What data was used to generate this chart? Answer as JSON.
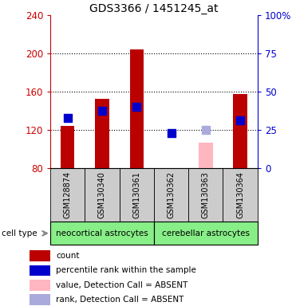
{
  "title": "GDS3366 / 1451245_at",
  "samples": [
    "GSM128874",
    "GSM130340",
    "GSM130361",
    "GSM130362",
    "GSM130363",
    "GSM130364"
  ],
  "count_values": [
    124,
    153,
    204,
    80,
    null,
    158
  ],
  "percentile_present": [
    133,
    140,
    144,
    117,
    null,
    130
  ],
  "percentile_absent_rank": [
    null,
    null,
    null,
    null,
    120,
    null
  ],
  "value_absent": [
    null,
    null,
    null,
    null,
    107,
    null
  ],
  "ylim_left": [
    80,
    240
  ],
  "ylim_right": [
    0,
    100
  ],
  "left_ticks": [
    80,
    120,
    160,
    200,
    240
  ],
  "right_ticks": [
    0,
    25,
    50,
    75,
    100
  ],
  "left_color": "#cc0000",
  "right_color": "#0000cc",
  "count_color": "#bb0000",
  "percentile_color": "#0000cc",
  "absent_value_color": "#ffb6c1",
  "absent_rank_color": "#aaaadd",
  "group1_label": "neocortical astrocytes",
  "group2_label": "cerebellar astrocytes",
  "group_bg_color": "#88ee88",
  "sample_box_color": "#cccccc",
  "cell_type_label": "cell type",
  "legend_items": [
    {
      "color": "#bb0000",
      "label": "count"
    },
    {
      "color": "#0000cc",
      "label": "percentile rank within the sample"
    },
    {
      "color": "#ffb6c1",
      "label": "value, Detection Call = ABSENT"
    },
    {
      "color": "#aaaadd",
      "label": "rank, Detection Call = ABSENT"
    }
  ],
  "gridline_ticks": [
    120,
    160,
    200
  ],
  "neocort_range": [
    0,
    3
  ],
  "cereb_range": [
    3,
    6
  ]
}
